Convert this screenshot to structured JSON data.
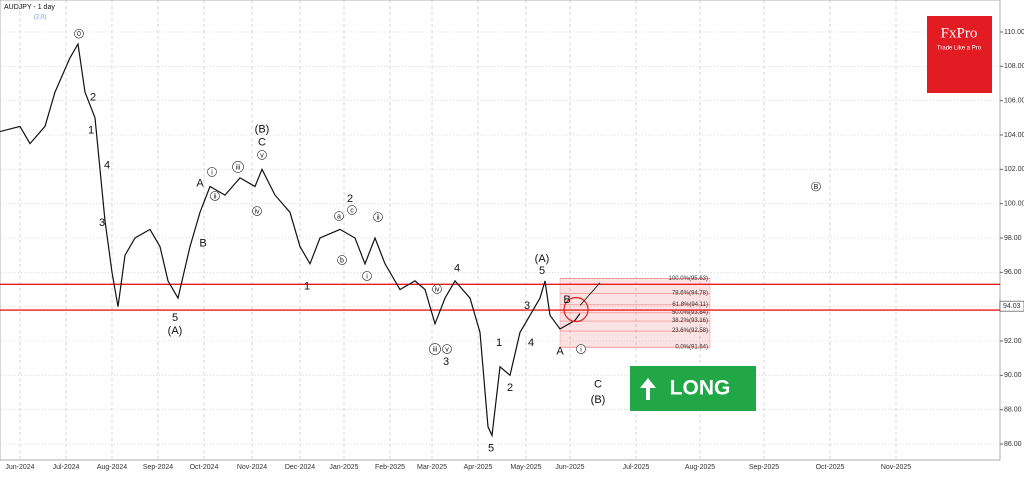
{
  "chart_data": {
    "type": "line",
    "title": "AUDJPY - 1 day",
    "subtitle": "(2,0)",
    "brand": "FxPro",
    "brand_tagline": "Trade Like a Pro",
    "signal": "LONG",
    "current_price": {
      "value": 94.03,
      "label": "94.03"
    },
    "color": "#111111",
    "x": [
      0,
      10,
      15,
      22.5,
      27.5,
      35,
      39,
      42.5,
      47.5,
      50,
      52.5,
      56,
      59,
      62.5,
      67.5,
      75,
      80,
      84,
      89,
      95,
      100,
      105,
      112.5,
      120,
      127.5,
      131,
      137.5,
      145,
      150,
      155,
      160,
      170,
      177.5,
      182.5,
      187.5,
      192.5,
      200,
      207.5,
      212.5,
      217.5,
      222.5,
      227.5,
      235,
      240,
      244,
      246,
      250,
      255,
      260,
      265,
      270,
      272.5,
      275,
      280,
      287.5,
      290
    ],
    "values": [
      104.2,
      104.5,
      103.5,
      104.5,
      106.5,
      108.5,
      109.3,
      106.5,
      105,
      102,
      99,
      96,
      94,
      97,
      98,
      98.5,
      97.5,
      95.5,
      94.5,
      97.5,
      99.5,
      101,
      100.5,
      101.5,
      101,
      102,
      100.5,
      99.5,
      97.5,
      96.5,
      98,
      98.5,
      98,
      96.5,
      98,
      96.5,
      95,
      95.5,
      95,
      93,
      94.5,
      95.5,
      94.5,
      92.5,
      87,
      86.5,
      90.5,
      90,
      92.5,
      93.5,
      94.5,
      95.5,
      93.5,
      92.7,
      93.2,
      93.6
    ],
    "xlim": [
      0,
      500
    ],
    "xticks": [
      {
        "value": 10,
        "label": "Jun-2024"
      },
      {
        "value": 33,
        "label": "Jul-2024"
      },
      {
        "value": 56,
        "label": "Aug-2024"
      },
      {
        "value": 79,
        "label": "Sep-2024"
      },
      {
        "value": 102,
        "label": "Oct-2024"
      },
      {
        "value": 126,
        "label": "Nov-2024"
      },
      {
        "value": 150,
        "label": "Dec-2024"
      },
      {
        "value": 172,
        "label": "Jan-2025"
      },
      {
        "value": 195,
        "label": "Feb-2025"
      },
      {
        "value": 216,
        "label": "Mar-2025"
      },
      {
        "value": 239,
        "label": "Apr-2025"
      },
      {
        "value": 263,
        "label": "May-2025"
      },
      {
        "value": 285,
        "label": "Jun-2025"
      },
      {
        "value": 318,
        "label": "Jul-2025"
      },
      {
        "value": 350,
        "label": "Aug-2025"
      },
      {
        "value": 382,
        "label": "Sep-2025"
      },
      {
        "value": 415,
        "label": "Oct-2025"
      },
      {
        "value": 448,
        "label": "Nov-2025"
      }
    ],
    "ylim": [
      85,
      112
    ],
    "yticks": [
      {
        "value": 86,
        "label": "86.00"
      },
      {
        "value": 88,
        "label": "88.00"
      },
      {
        "value": 90,
        "label": "90.00"
      },
      {
        "value": 92,
        "label": "92.00"
      },
      {
        "value": 94,
        "label": "94.00"
      },
      {
        "value": 96,
        "label": "96.00"
      },
      {
        "value": 98,
        "label": "98.00"
      },
      {
        "value": 100,
        "label": "100.00"
      },
      {
        "value": 102,
        "label": "102.00"
      },
      {
        "value": 104,
        "label": "104.00"
      },
      {
        "value": 106,
        "label": "106.00"
      },
      {
        "value": 108,
        "label": "108.00"
      },
      {
        "value": 110,
        "label": "110.00"
      }
    ],
    "grid": true,
    "levels": [
      95.3,
      93.8
    ],
    "level_color": "#e81c1c",
    "fib_zone": {
      "x": [
        280,
        355
      ],
      "levels": [
        {
          "value": 95.63,
          "label": "100.0%(95.63)"
        },
        {
          "value": 94.78,
          "label": "78.6%(94.78)"
        },
        {
          "value": 94.11,
          "label": "61.8%(94.11)"
        },
        {
          "value": 93.64,
          "label": "50.0%(93.64)"
        },
        {
          "value": 93.16,
          "label": "38.2%(93.16)"
        },
        {
          "value": 92.58,
          "label": "23.6%(92.58)"
        },
        {
          "value": 91.64,
          "label": "0.0%(91.64)"
        }
      ]
    },
    "annotations": [
      {
        "text": "0",
        "x": 39.5,
        "y": 109.9,
        "circled": true
      },
      {
        "text": "2",
        "x": 46.5,
        "y": 106.2
      },
      {
        "text": "1",
        "x": 45.5,
        "y": 104.3
      },
      {
        "text": "4",
        "x": 53.5,
        "y": 102.25
      },
      {
        "text": "3",
        "x": 51,
        "y": 98.9
      },
      {
        "text": "5",
        "x": 87.5,
        "y": 93.35
      },
      {
        "text": "(A)",
        "x": 87.5,
        "y": 92.6
      },
      {
        "text": "A",
        "x": 100,
        "y": 101.2
      },
      {
        "text": "B",
        "x": 101.5,
        "y": 97.7
      },
      {
        "text": "(B)",
        "x": 131,
        "y": 104.35
      },
      {
        "text": "C",
        "x": 131,
        "y": 103.6
      },
      {
        "text": "2",
        "x": 175,
        "y": 100.3
      },
      {
        "text": "1",
        "x": 153.5,
        "y": 95.2
      },
      {
        "text": "4",
        "x": 228.5,
        "y": 96.25
      },
      {
        "text": "3",
        "x": 223,
        "y": 90.8
      },
      {
        "text": "(A)",
        "x": 271,
        "y": 96.8
      },
      {
        "text": "5",
        "x": 271,
        "y": 96.1
      },
      {
        "text": "3",
        "x": 263.5,
        "y": 94.05
      },
      {
        "text": "4",
        "x": 265.5,
        "y": 91.9
      },
      {
        "text": "1",
        "x": 249.5,
        "y": 91.9
      },
      {
        "text": "2",
        "x": 255,
        "y": 89.3
      },
      {
        "text": "5",
        "x": 245.5,
        "y": 85.75
      },
      {
        "text": "B",
        "x": 283.5,
        "y": 94.4
      },
      {
        "text": "A",
        "x": 280,
        "y": 91.4
      },
      {
        "text": "C",
        "x": 299,
        "y": 89.5
      },
      {
        "text": "(B)",
        "x": 299,
        "y": 88.6
      },
      {
        "text": "B",
        "x": 408,
        "y": 101.0,
        "circled": true
      },
      {
        "text": "i",
        "x": 106,
        "y": 101.85,
        "circled": true
      },
      {
        "text": "ii",
        "x": 107.5,
        "y": 100.45,
        "circled": true
      },
      {
        "text": "iii",
        "x": 119,
        "y": 102.14,
        "circled": true
      },
      {
        "text": "v",
        "x": 131,
        "y": 102.84,
        "circled": true
      },
      {
        "text": "iv",
        "x": 128.5,
        "y": 99.57,
        "circled": true
      },
      {
        "text": "a",
        "x": 169.5,
        "y": 99.28,
        "circled": true
      },
      {
        "text": "c",
        "x": 176,
        "y": 99.63,
        "circled": true
      },
      {
        "text": "b",
        "x": 171,
        "y": 96.72,
        "circled": true
      },
      {
        "text": "i",
        "x": 183.5,
        "y": 95.79,
        "circled": true
      },
      {
        "text": "ii",
        "x": 189,
        "y": 99.22,
        "circled": true
      },
      {
        "text": "iii",
        "x": 217.5,
        "y": 91.53,
        "circled": true
      },
      {
        "text": "v",
        "x": 223.5,
        "y": 91.53,
        "circled": true
      },
      {
        "text": "iv",
        "x": 218.5,
        "y": 95.03,
        "circled": true
      },
      {
        "text": "i",
        "x": 290.5,
        "y": 91.53,
        "circled": true
      }
    ]
  }
}
